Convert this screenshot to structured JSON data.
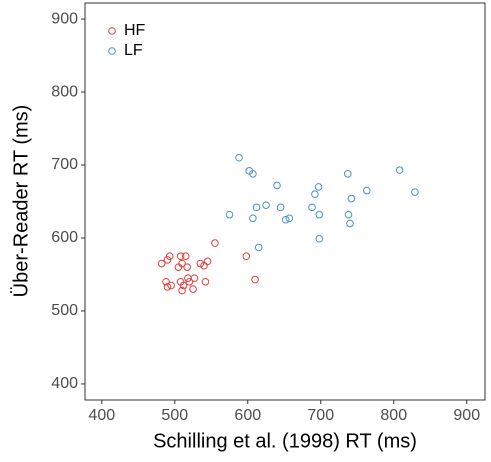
{
  "chart_data": {
    "type": "scatter",
    "x_label": "Schilling et al. (1998) RT (ms)",
    "y_label": "Über-Reader RT (ms)",
    "xlim": [
      377,
      925
    ],
    "ylim": [
      378,
      922
    ],
    "xticks": [
      400,
      500,
      600,
      700,
      800,
      900
    ],
    "yticks": [
      400,
      500,
      600,
      700,
      800,
      900
    ],
    "grid": false,
    "legend_position": "top-left",
    "series": [
      {
        "name": "HF",
        "color": "#e0403a",
        "x": [
          482,
          490,
          493,
          488,
          495,
          490,
          505,
          508,
          510,
          515,
          517,
          508,
          512,
          510,
          518,
          520,
          527,
          525,
          535,
          540,
          545,
          542,
          555,
          598,
          610
        ],
        "values": [
          565,
          570,
          575,
          540,
          535,
          533,
          560,
          575,
          565,
          575,
          560,
          540,
          535,
          528,
          545,
          540,
          545,
          530,
          565,
          562,
          568,
          540,
          593,
          575,
          543
        ]
      },
      {
        "name": "LF",
        "color": "#4a8fcb",
        "x": [
          588,
          602,
          607,
          575,
          607,
          612,
          615,
          625,
          640,
          645,
          652,
          657,
          688,
          692,
          697,
          698,
          698,
          737,
          738,
          740,
          742,
          763,
          808,
          829
        ],
        "values": [
          710,
          692,
          688,
          632,
          627,
          642,
          587,
          645,
          672,
          642,
          625,
          627,
          642,
          660,
          670,
          632,
          599,
          688,
          632,
          620,
          654,
          665,
          693,
          663
        ]
      }
    ]
  }
}
